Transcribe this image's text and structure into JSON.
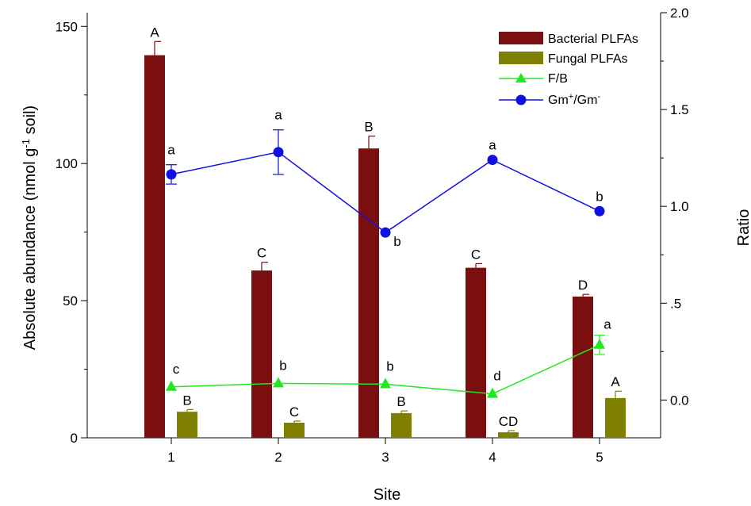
{
  "chart_data": {
    "type": "bar",
    "title": "",
    "xlabel": "Site",
    "ylabel_left": {
      "main": "Absolute abundance (nmol g",
      "sup": "-1",
      "tail": " soil)"
    },
    "ylabel_right": "Ratio",
    "categories": [
      "1",
      "2",
      "3",
      "4",
      "5"
    ],
    "ylim_left": [
      0,
      155
    ],
    "ylim_right": [
      -0.195,
      2.0
    ],
    "yticks_left": [
      {
        "value": 0,
        "label": "0"
      },
      {
        "value": 50,
        "label": "50"
      },
      {
        "value": 100,
        "label": "100"
      },
      {
        "value": 150,
        "label": "150"
      }
    ],
    "yticks_right": [
      {
        "value": 0.0,
        "label": "0.0"
      },
      {
        "value": 0.5,
        "label": ".5"
      },
      {
        "value": 1.0,
        "label": "1.0"
      },
      {
        "value": 1.5,
        "label": "1.5"
      },
      {
        "value": 2.0,
        "label": "2.0"
      }
    ],
    "grid": false,
    "legend_position": "top-right",
    "series": [
      {
        "name": "Bacterial PLFAs",
        "kind": "bar",
        "axis": "left",
        "color": "#7b0f0f",
        "values": [
          139.5,
          61.0,
          105.5,
          62.0,
          51.5
        ],
        "errors": [
          5.0,
          3.0,
          4.5,
          1.5,
          0.8
        ],
        "sig": [
          "A",
          "C",
          "B",
          "C",
          "D"
        ]
      },
      {
        "name": "Fungal PLFAs",
        "kind": "bar",
        "axis": "left",
        "color": "#808000",
        "values": [
          9.5,
          5.5,
          9.0,
          2.0,
          14.5
        ],
        "errors": [
          0.8,
          0.6,
          0.8,
          0.6,
          2.5
        ],
        "sig": [
          "B",
          "C",
          "B",
          "CD",
          "A"
        ]
      },
      {
        "name": "F/B",
        "kind": "line",
        "marker": "triangle",
        "axis": "right",
        "color": "#22e822",
        "values": [
          0.068,
          0.086,
          0.082,
          0.032,
          0.285
        ],
        "errors": [
          0.0,
          0.0,
          0.0,
          0.0,
          0.05
        ],
        "sig": [
          "c",
          "b",
          "b",
          "d",
          "a"
        ]
      },
      {
        "name": "Gm+/Gm-",
        "name_parts": {
          "main": "Gm",
          "sup1": "+",
          "mid": "/Gm",
          "sup2": "-"
        },
        "kind": "line",
        "marker": "circle",
        "axis": "right",
        "color": "#1010e0",
        "values": [
          1.165,
          1.28,
          0.865,
          1.24,
          0.975
        ],
        "errors": [
          0.05,
          0.115,
          0.0,
          0.0,
          0.0
        ],
        "sig": [
          "a",
          "a",
          "b",
          "a",
          "b"
        ]
      }
    ]
  }
}
